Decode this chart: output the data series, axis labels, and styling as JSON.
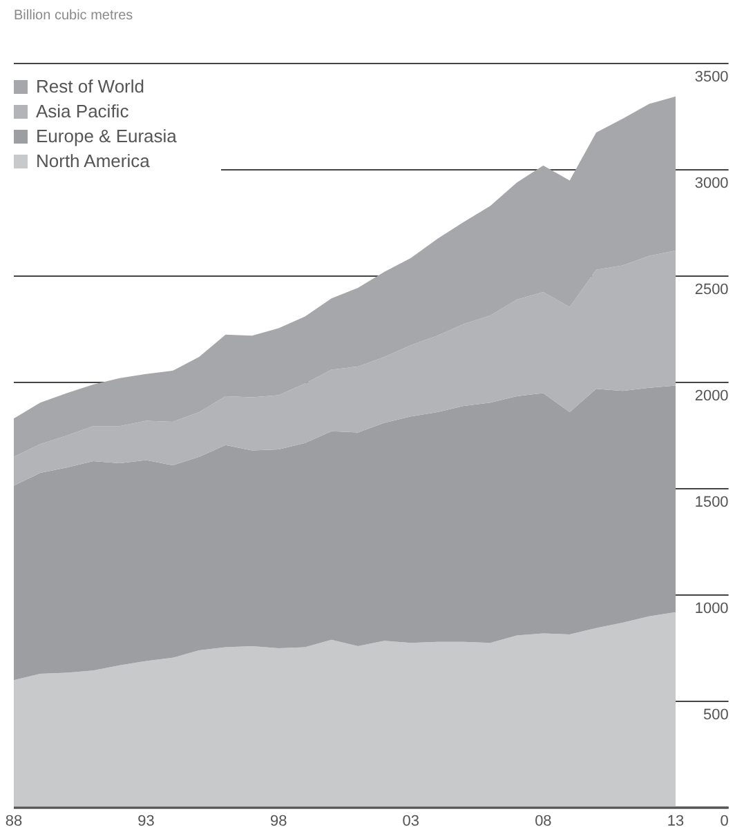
{
  "chart_data": {
    "type": "area",
    "stacked": true,
    "ylabel": "Billion cubic metres",
    "x": [
      1988,
      1989,
      1990,
      1991,
      1992,
      1993,
      1994,
      1995,
      1996,
      1997,
      1998,
      1999,
      2000,
      2001,
      2002,
      2003,
      2004,
      2005,
      2006,
      2007,
      2008,
      2009,
      2010,
      2011,
      2012,
      2013
    ],
    "xlim": [
      1988,
      2015
    ],
    "xticks": [
      {
        "value": 1988,
        "label": "88"
      },
      {
        "value": 1993,
        "label": "93"
      },
      {
        "value": 1998,
        "label": "98"
      },
      {
        "value": 2003,
        "label": "03"
      },
      {
        "value": 2008,
        "label": "08"
      },
      {
        "value": 2013,
        "label": "13"
      }
    ],
    "ylim": [
      0,
      3500
    ],
    "yticks": [
      0,
      500,
      1000,
      1500,
      2000,
      2500,
      3000,
      3500
    ],
    "grid": "y",
    "legend": "top left",
    "series": [
      {
        "name": "North America",
        "color": "#c8c9cb",
        "values": [
          600,
          630,
          635,
          645,
          670,
          690,
          705,
          740,
          755,
          760,
          750,
          755,
          790,
          760,
          785,
          775,
          780,
          780,
          775,
          810,
          820,
          815,
          845,
          870,
          900,
          920
        ]
      },
      {
        "name": "Europe & Eurasia",
        "color": "#9d9ea2",
        "values": [
          915,
          945,
          965,
          985,
          950,
          945,
          905,
          910,
          950,
          920,
          935,
          960,
          980,
          1005,
          1025,
          1065,
          1080,
          1110,
          1130,
          1125,
          1130,
          1045,
          1125,
          1090,
          1075,
          1065
        ]
      },
      {
        "name": "Asia Pacific",
        "color": "#b3b4b7",
        "values": [
          135,
          135,
          150,
          165,
          175,
          185,
          205,
          210,
          230,
          250,
          255,
          280,
          290,
          310,
          310,
          335,
          360,
          385,
          410,
          455,
          475,
          495,
          560,
          590,
          620,
          635
        ]
      },
      {
        "name": "Rest of World",
        "color": "#a6a7aa",
        "values": [
          180,
          195,
          200,
          195,
          225,
          220,
          240,
          260,
          290,
          290,
          315,
          315,
          335,
          370,
          400,
          410,
          455,
          480,
          515,
          550,
          595,
          595,
          645,
          690,
          715,
          725
        ]
      }
    ]
  }
}
